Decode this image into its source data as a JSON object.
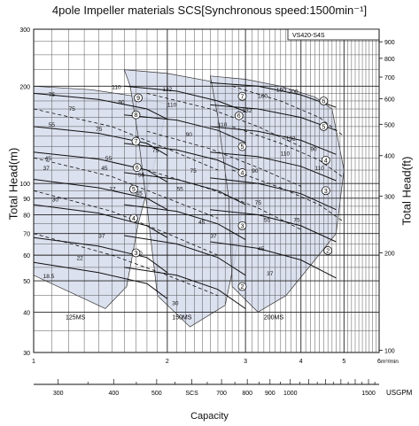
{
  "chart_data": {
    "type": "line",
    "title": "4pole Impeller materials SCS[Synchronous speed:1500min⁻¹]",
    "model_label": "VS420-S4S",
    "ylabel_left": "Total Head(m)",
    "ylabel_right": "Total Head(ft)",
    "xlabel": "Capacity",
    "x_unit_primary": "m³/min",
    "x_unit_secondary": "USGPM",
    "log_scale": true,
    "grid": true,
    "xlim": [
      1,
      6
    ],
    "ylim": [
      30,
      300
    ],
    "x_ticks": [
      {
        "v": 1,
        "label": "1"
      },
      {
        "v": 2,
        "label": "2"
      },
      {
        "v": 3,
        "label": "3"
      },
      {
        "v": 4,
        "label": "4"
      },
      {
        "v": 5,
        "label": "5"
      },
      {
        "v": 6,
        "label": "6"
      }
    ],
    "usgpm_ticks": [
      {
        "v": 300,
        "label": "300"
      },
      {
        "v": 400,
        "label": "400"
      },
      {
        "v": 500,
        "label": "500"
      },
      {
        "v": 600,
        "label": "SCS"
      },
      {
        "v": 700,
        "label": "700"
      },
      {
        "v": 800,
        "label": "800"
      },
      {
        "v": 900,
        "label": "900"
      },
      {
        "v": 1000,
        "label": "1000"
      },
      {
        "v": 1500,
        "label": "1500"
      }
    ],
    "y_ticks_m": [
      {
        "v": 300,
        "label": "300"
      },
      {
        "v": 200,
        "label": "200"
      },
      {
        "v": 100,
        "label": "100"
      },
      {
        "v": 90,
        "label": "90"
      },
      {
        "v": 80,
        "label": "80"
      },
      {
        "v": 70,
        "label": "70"
      },
      {
        "v": 60,
        "label": "60"
      },
      {
        "v": 50,
        "label": "50"
      },
      {
        "v": 40,
        "label": "40"
      },
      {
        "v": 30,
        "label": "30"
      }
    ],
    "y_ticks_ft": [
      {
        "v": 900,
        "label": "900"
      },
      {
        "v": 800,
        "label": "800"
      },
      {
        "v": 700,
        "label": "700"
      },
      {
        "v": 600,
        "label": "600"
      },
      {
        "v": 500,
        "label": "500"
      },
      {
        "v": 400,
        "label": "400"
      },
      {
        "v": 300,
        "label": "300"
      },
      {
        "v": 200,
        "label": "200"
      },
      {
        "v": 100,
        "label": "100"
      }
    ],
    "regions": [
      {
        "name": "125MS",
        "label_x": 1.18,
        "label_y": 38,
        "polygon": [
          [
            1.0,
            200
          ],
          [
            1.35,
            195
          ],
          [
            1.7,
            186
          ],
          [
            2.0,
            176
          ],
          [
            1.9,
            125
          ],
          [
            1.72,
            75
          ],
          [
            1.62,
            48
          ],
          [
            1.45,
            41
          ],
          [
            1.3,
            44
          ],
          [
            1.0,
            52
          ]
        ]
      },
      {
        "name": "150MS",
        "label_x": 2.05,
        "label_y": 38,
        "polygon": [
          [
            1.6,
            225
          ],
          [
            2.0,
            219
          ],
          [
            2.5,
            207
          ],
          [
            2.95,
            192
          ],
          [
            3.0,
            140
          ],
          [
            2.95,
            85
          ],
          [
            2.85,
            60
          ],
          [
            2.7,
            42
          ],
          [
            2.25,
            36
          ],
          [
            1.9,
            45
          ],
          [
            1.8,
            85
          ],
          [
            1.72,
            140
          ],
          [
            1.65,
            200
          ]
        ]
      },
      {
        "name": "200MS",
        "label_x": 3.3,
        "label_y": 38,
        "polygon": [
          [
            2.5,
            215
          ],
          [
            3.0,
            210
          ],
          [
            3.6,
            200
          ],
          [
            4.3,
            185
          ],
          [
            4.7,
            170
          ],
          [
            5.0,
            110
          ],
          [
            4.8,
            70
          ],
          [
            4.3,
            58
          ],
          [
            3.7,
            45
          ],
          [
            3.2,
            40
          ],
          [
            2.8,
            48
          ],
          [
            2.75,
            90
          ],
          [
            2.6,
            160
          ]
        ]
      }
    ],
    "head_curves": [
      {
        "x": [
          1.0,
          1.4,
          1.8,
          2.0
        ],
        "y": [
          190,
          182,
          170,
          158
        ]
      },
      {
        "x": [
          1.0,
          1.4,
          1.8,
          2.0
        ],
        "y": [
          150,
          143,
          133,
          122
        ]
      },
      {
        "x": [
          1.0,
          1.4,
          1.8,
          2.0
        ],
        "y": [
          125,
          119,
          110,
          101
        ]
      },
      {
        "x": [
          1.0,
          1.4,
          1.8,
          2.0
        ],
        "y": [
          103,
          97,
          90,
          83
        ]
      },
      {
        "x": [
          1.0,
          1.4,
          1.8,
          2.0
        ],
        "y": [
          86,
          81,
          74,
          68
        ]
      },
      {
        "x": [
          1.0,
          1.4,
          1.8,
          2.0
        ],
        "y": [
          68,
          64,
          59,
          53
        ]
      },
      {
        "x": [
          1.0,
          1.4,
          1.8,
          2.0
        ],
        "y": [
          57,
          53,
          49,
          44
        ]
      },
      {
        "x": [
          1.6,
          2.1,
          2.6,
          3.0
        ],
        "y": [
          200,
          193,
          180,
          167
        ]
      },
      {
        "x": [
          1.6,
          2.1,
          2.6,
          3.0
        ],
        "y": [
          163,
          157,
          146,
          134
        ]
      },
      {
        "x": [
          1.6,
          2.1,
          2.6,
          3.0
        ],
        "y": [
          133,
          127,
          118,
          108
        ]
      },
      {
        "x": [
          1.6,
          2.1,
          2.6,
          3.0
        ],
        "y": [
          108,
          103,
          95,
          86
        ]
      },
      {
        "x": [
          1.6,
          2.1,
          2.6,
          3.0
        ],
        "y": [
          86,
          82,
          75,
          67
        ]
      },
      {
        "x": [
          1.6,
          2.1,
          2.6,
          3.0
        ],
        "y": [
          69,
          65,
          59,
          52
        ]
      },
      {
        "x": [
          1.6,
          2.1,
          2.6,
          3.0
        ],
        "y": [
          55,
          52,
          47,
          41
        ]
      },
      {
        "x": [
          2.5,
          3.2,
          4.0,
          4.8
        ],
        "y": [
          205,
          200,
          188,
          172
        ]
      },
      {
        "x": [
          2.5,
          3.2,
          4.0,
          4.8
        ],
        "y": [
          175,
          170,
          160,
          146
        ]
      },
      {
        "x": [
          2.5,
          3.2,
          4.0,
          4.8
        ],
        "y": [
          150,
          145,
          136,
          123
        ]
      },
      {
        "x": [
          2.5,
          3.2,
          4.0,
          4.8
        ],
        "y": [
          125,
          121,
          113,
          102
        ]
      },
      {
        "x": [
          2.5,
          3.2,
          4.0,
          4.8
        ],
        "y": [
          104,
          100,
          93,
          83
        ]
      },
      {
        "x": [
          2.5,
          3.2,
          4.0,
          4.8
        ],
        "y": [
          83,
          80,
          74,
          66
        ]
      },
      {
        "x": [
          2.5,
          3.2,
          4.0,
          4.8
        ],
        "y": [
          66,
          63,
          58,
          51
        ]
      }
    ],
    "dashed_curves": [
      {
        "x": [
          1.0,
          1.5,
          2.0,
          2.6
        ],
        "y": [
          170,
          150,
          128,
          110
        ]
      },
      {
        "x": [
          1.0,
          1.5,
          2.0,
          2.6
        ],
        "y": [
          120,
          105,
          90,
          78
        ]
      },
      {
        "x": [
          1.0,
          1.5,
          2.0,
          2.6
        ],
        "y": [
          95,
          82,
          70,
          60
        ]
      },
      {
        "x": [
          1.0,
          1.5,
          2.0,
          2.6
        ],
        "y": [
          70,
          60,
          52,
          45
        ]
      },
      {
        "x": [
          1.8,
          2.5,
          3.2,
          4.0
        ],
        "y": [
          190,
          170,
          150,
          130
        ]
      },
      {
        "x": [
          1.8,
          2.5,
          3.2,
          4.0
        ],
        "y": [
          145,
          128,
          112,
          98
        ]
      },
      {
        "x": [
          1.8,
          2.5,
          3.2,
          4.0
        ],
        "y": [
          110,
          96,
          84,
          72
        ]
      },
      {
        "x": [
          2.8,
          3.6,
          4.4,
          5.0
        ],
        "y": [
          200,
          180,
          160,
          140
        ]
      },
      {
        "x": [
          2.8,
          3.6,
          4.4,
          5.0
        ],
        "y": [
          150,
          133,
          118,
          104
        ]
      },
      {
        "x": [
          2.8,
          3.6,
          4.4,
          5.0
        ],
        "y": [
          110,
          97,
          86,
          76
        ]
      }
    ],
    "power_labels": [
      {
        "text": "75",
        "x": 1.08,
        "y": 186
      },
      {
        "text": "75",
        "x": 1.2,
        "y": 168
      },
      {
        "text": "55",
        "x": 1.08,
        "y": 150
      },
      {
        "text": "45",
        "x": 1.06,
        "y": 118
      },
      {
        "text": "37",
        "x": 1.05,
        "y": 110
      },
      {
        "text": "30",
        "x": 1.1,
        "y": 88
      },
      {
        "text": "22",
        "x": 1.25,
        "y": 58
      },
      {
        "text": "18.5",
        "x": 1.05,
        "y": 51
      },
      {
        "text": "110",
        "x": 1.5,
        "y": 196
      },
      {
        "text": "90",
        "x": 1.55,
        "y": 176
      },
      {
        "text": "75",
        "x": 1.38,
        "y": 145
      },
      {
        "text": "55",
        "x": 1.45,
        "y": 118
      },
      {
        "text": "45",
        "x": 1.42,
        "y": 110
      },
      {
        "text": "37",
        "x": 1.48,
        "y": 95
      },
      {
        "text": "37",
        "x": 1.4,
        "y": 68
      },
      {
        "text": "30",
        "x": 1.7,
        "y": 60
      },
      {
        "text": "55",
        "x": 1.72,
        "y": 105
      },
      {
        "text": "45",
        "x": 1.7,
        "y": 92
      },
      {
        "text": "132",
        "x": 1.95,
        "y": 193
      },
      {
        "text": "110",
        "x": 2.0,
        "y": 173
      },
      {
        "text": "90",
        "x": 2.2,
        "y": 140
      },
      {
        "text": "75",
        "x": 1.85,
        "y": 125
      },
      {
        "text": "75",
        "x": 2.25,
        "y": 108
      },
      {
        "text": "55",
        "x": 2.1,
        "y": 95
      },
      {
        "text": "45",
        "x": 2.35,
        "y": 75
      },
      {
        "text": "37",
        "x": 2.5,
        "y": 68
      },
      {
        "text": "30",
        "x": 2.05,
        "y": 42
      },
      {
        "text": "110",
        "x": 2.6,
        "y": 150
      },
      {
        "text": "132",
        "x": 2.95,
        "y": 166
      },
      {
        "text": "160",
        "x": 3.2,
        "y": 184
      },
      {
        "text": "160",
        "x": 3.52,
        "y": 192
      },
      {
        "text": "200",
        "x": 3.75,
        "y": 190
      },
      {
        "text": "132",
        "x": 3.7,
        "y": 136
      },
      {
        "text": "110",
        "x": 3.6,
        "y": 122
      },
      {
        "text": "90",
        "x": 3.1,
        "y": 108
      },
      {
        "text": "90",
        "x": 4.2,
        "y": 126
      },
      {
        "text": "110",
        "x": 4.3,
        "y": 110
      },
      {
        "text": "75",
        "x": 3.15,
        "y": 86
      },
      {
        "text": "75",
        "x": 3.85,
        "y": 76
      },
      {
        "text": "55",
        "x": 3.3,
        "y": 76
      },
      {
        "text": "45",
        "x": 3.2,
        "y": 62
      },
      {
        "text": "37",
        "x": 3.35,
        "y": 52
      }
    ],
    "stage_labels": [
      {
        "text": "9",
        "x": 1.72,
        "y": 184
      },
      {
        "text": "8",
        "x": 1.7,
        "y": 163
      },
      {
        "text": "7",
        "x": 1.7,
        "y": 135
      },
      {
        "text": "6",
        "x": 1.71,
        "y": 112
      },
      {
        "text": "5",
        "x": 1.68,
        "y": 96
      },
      {
        "text": "4",
        "x": 1.68,
        "y": 78
      },
      {
        "text": "3",
        "x": 1.7,
        "y": 61
      },
      {
        "text": "7",
        "x": 2.95,
        "y": 186
      },
      {
        "text": "6",
        "x": 2.9,
        "y": 162
      },
      {
        "text": "5",
        "x": 2.95,
        "y": 130
      },
      {
        "text": "4",
        "x": 2.95,
        "y": 108
      },
      {
        "text": "3",
        "x": 2.95,
        "y": 74
      },
      {
        "text": "2",
        "x": 2.95,
        "y": 48
      },
      {
        "text": "6",
        "x": 4.5,
        "y": 180
      },
      {
        "text": "5",
        "x": 4.5,
        "y": 150
      },
      {
        "text": "4",
        "x": 4.55,
        "y": 118
      },
      {
        "text": "3",
        "x": 4.55,
        "y": 95
      },
      {
        "text": "2",
        "x": 4.6,
        "y": 62
      }
    ]
  }
}
